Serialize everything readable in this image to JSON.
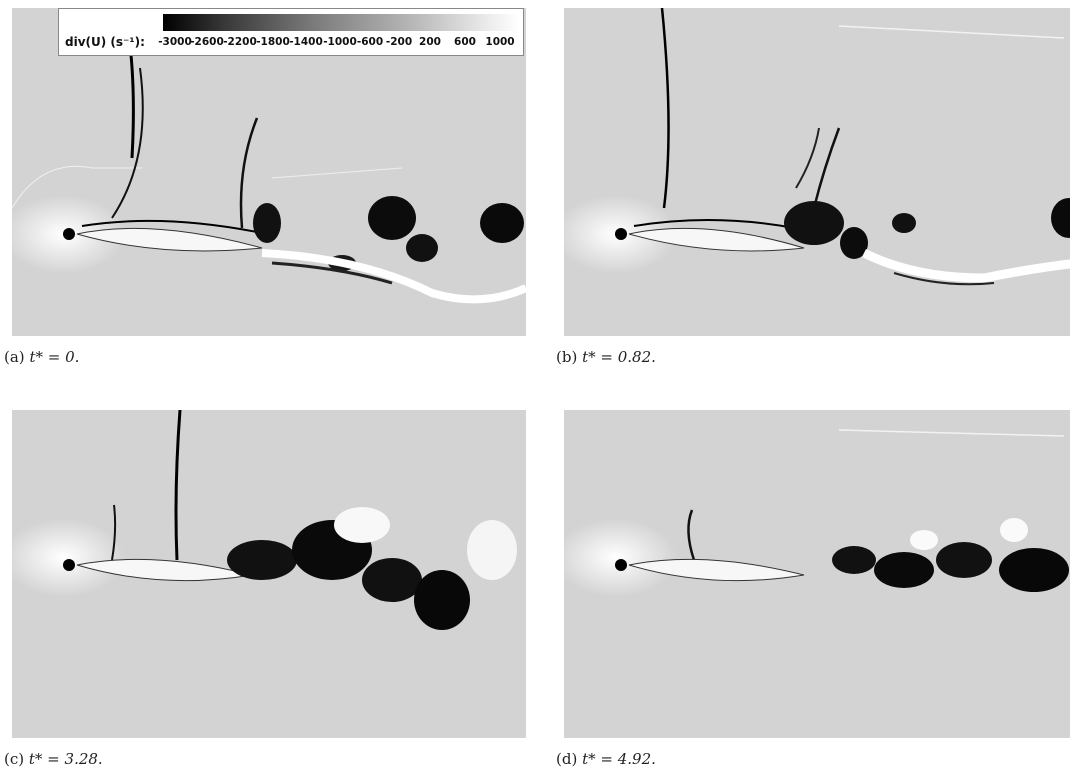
{
  "colorbar": {
    "title": "div(U) (s⁻¹):",
    "ticks": [
      "-3000",
      "-2600",
      "-2200",
      "-1800",
      "-1400",
      "-1000",
      "-600",
      "-200",
      "200",
      "600",
      "1000"
    ]
  },
  "panels": [
    {
      "label": "(a)",
      "equation": "t* = 0."
    },
    {
      "label": "(b)",
      "equation": "t* = 0.82."
    },
    {
      "label": "(c)",
      "equation": "t* = 3.28."
    },
    {
      "label": "(d)",
      "equation": "t* = 4.92."
    }
  ]
}
